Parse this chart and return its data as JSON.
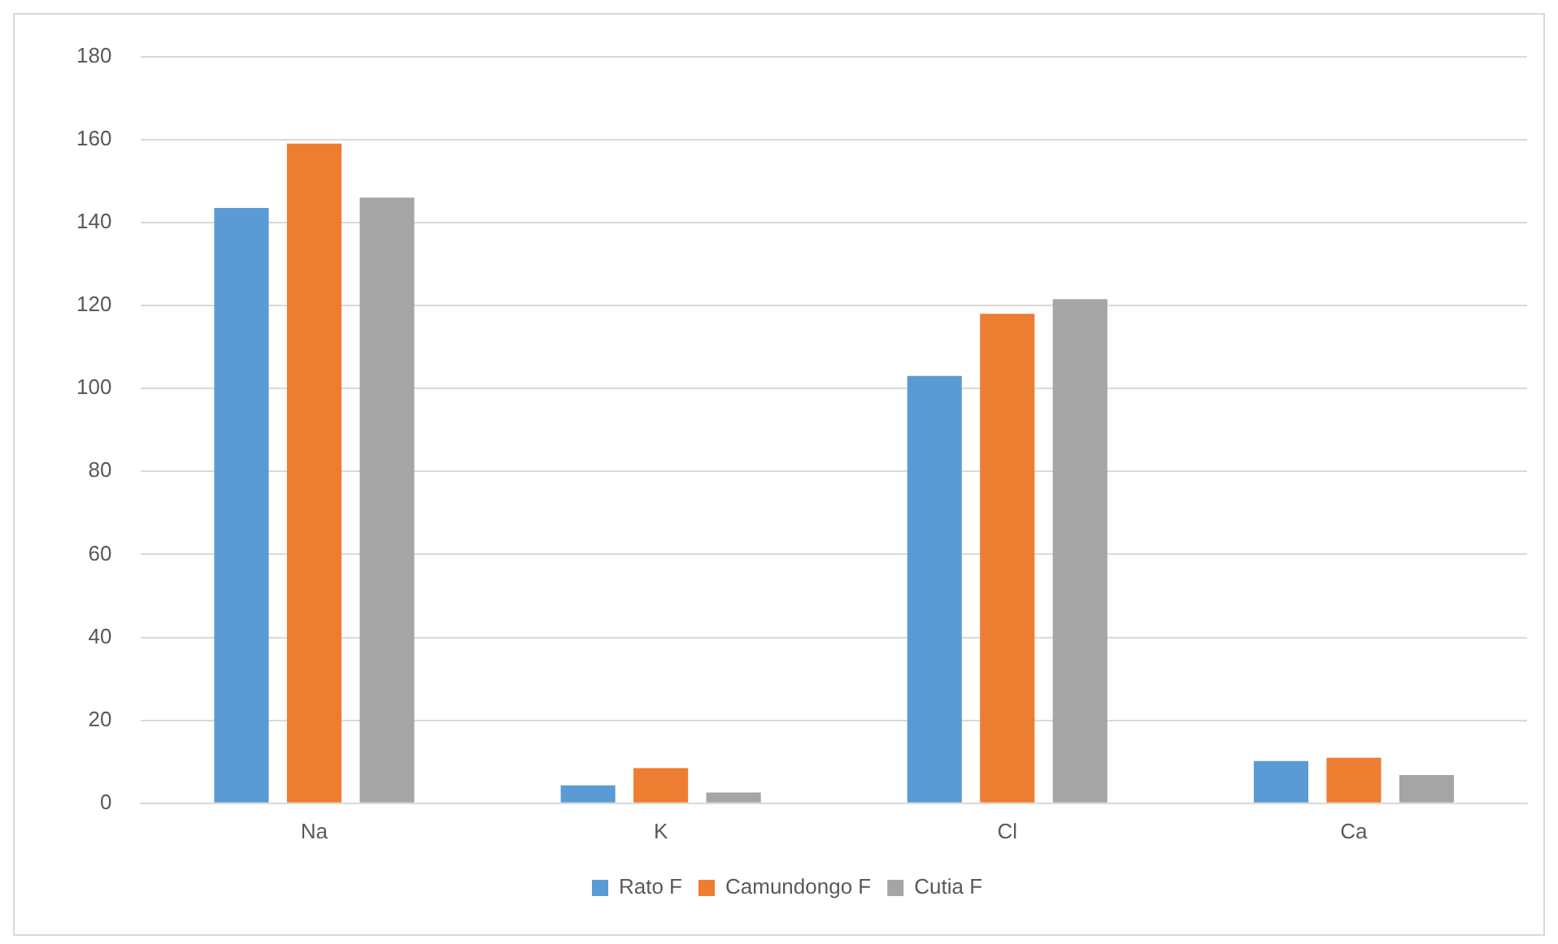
{
  "chart_data": {
    "type": "bar",
    "categories": [
      "Na",
      "K",
      "Cl",
      "Ca"
    ],
    "series": [
      {
        "name": "Rato F",
        "color": "#5b9bd5",
        "values": [
          143.5,
          4.3,
          103,
          10.2
        ]
      },
      {
        "name": "Camundongo F",
        "color": "#ed7d31",
        "values": [
          159,
          8.5,
          118,
          11
        ]
      },
      {
        "name": "Cutia F",
        "color": "#a5a5a5",
        "values": [
          146,
          2.6,
          121.5,
          6.8
        ]
      }
    ],
    "ylim": [
      0,
      180
    ],
    "yticks": [
      0,
      20,
      40,
      60,
      80,
      100,
      120,
      140,
      160,
      180
    ],
    "grid": "y",
    "legend": "bottom"
  }
}
